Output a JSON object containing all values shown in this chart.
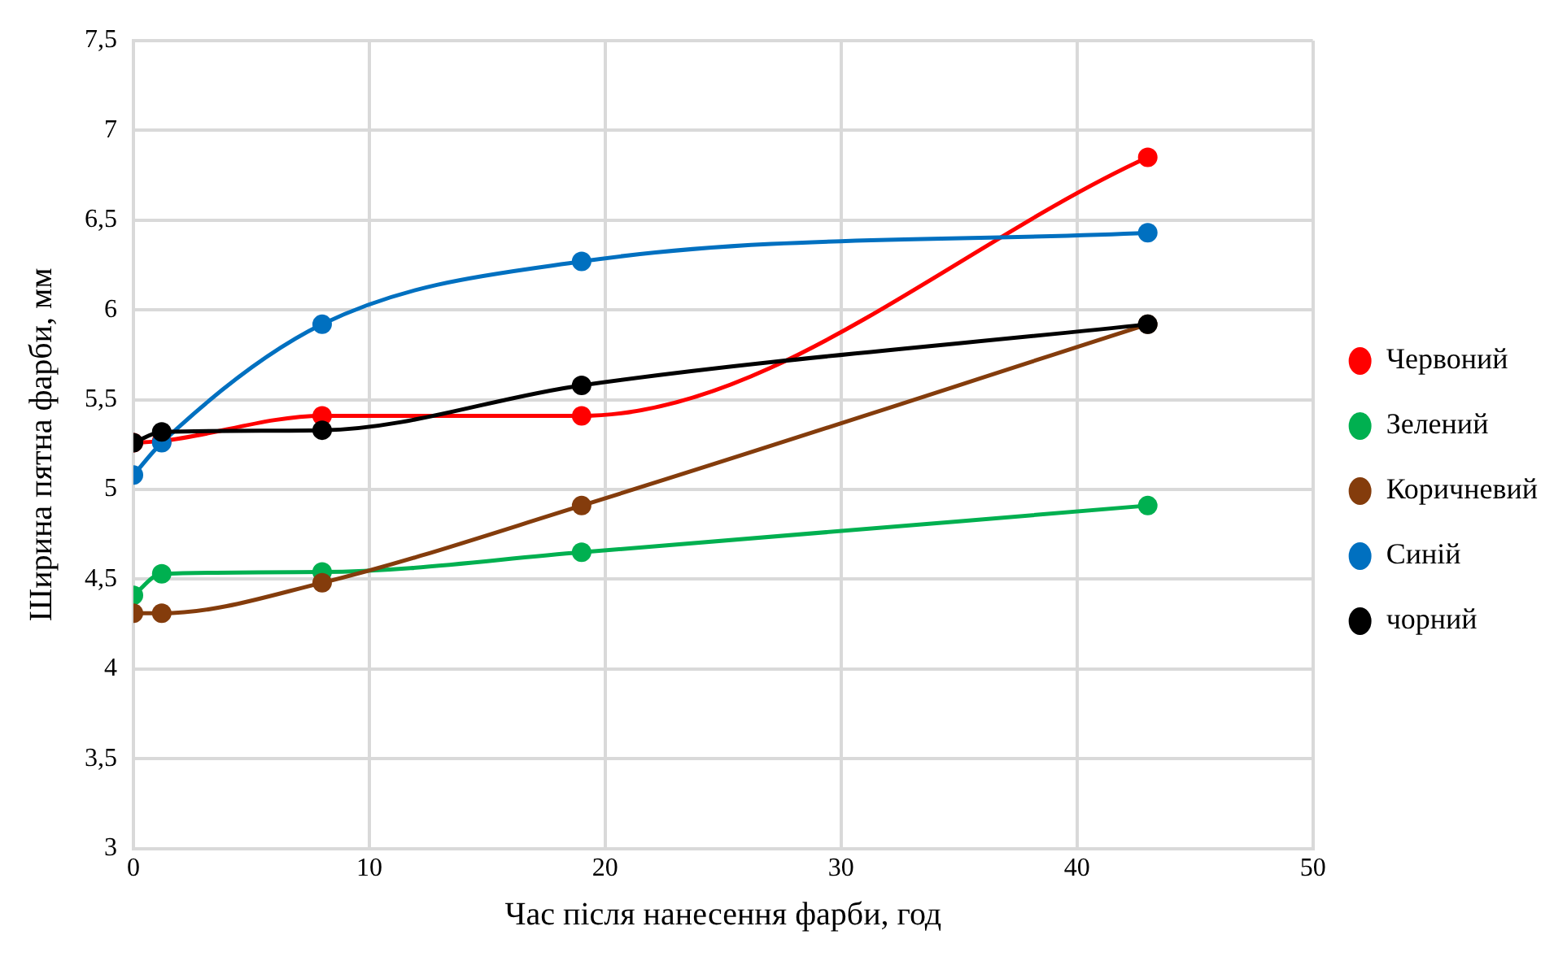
{
  "chart_data": {
    "type": "line",
    "xlabel": "Час після нанесення фарби, год",
    "ylabel": "Ширина пятна фарби, мм",
    "x": [
      0,
      1.2,
      8,
      19,
      43
    ],
    "series": [
      {
        "name": "Червоний",
        "color": "#ff0000",
        "values": [
          5.26,
          5.27,
          5.41,
          5.41,
          6.85
        ]
      },
      {
        "name": "Зелений",
        "color": "#00b050",
        "values": [
          4.41,
          4.53,
          4.54,
          4.65,
          4.91
        ]
      },
      {
        "name": "Коричневий",
        "color": "#843c0c",
        "values": [
          4.31,
          4.31,
          4.48,
          4.91,
          5.92
        ]
      },
      {
        "name": "Синій",
        "color": "#0070c0",
        "values": [
          5.08,
          5.26,
          5.92,
          6.27,
          6.43
        ]
      },
      {
        "name": "чорний",
        "color": "#000000",
        "values": [
          5.26,
          5.32,
          5.33,
          5.58,
          5.92
        ]
      }
    ],
    "xlim": [
      0,
      50
    ],
    "xticks": [
      0,
      10,
      20,
      30,
      40,
      50
    ],
    "ylim": [
      3,
      7.5
    ],
    "yticks": [
      {
        "value": 3,
        "label": "3"
      },
      {
        "value": 3.5,
        "label": "3,5"
      },
      {
        "value": 4,
        "label": "4"
      },
      {
        "value": 4.5,
        "label": "4,5"
      },
      {
        "value": 5,
        "label": "5"
      },
      {
        "value": 5.5,
        "label": "5,5"
      },
      {
        "value": 6,
        "label": "6"
      },
      {
        "value": 6.5,
        "label": "6,5"
      },
      {
        "value": 7,
        "label": "7"
      },
      {
        "value": 7.5,
        "label": "7,5"
      }
    ],
    "grid": true,
    "legend": "right",
    "marker": "circle",
    "line_style": "solid"
  }
}
